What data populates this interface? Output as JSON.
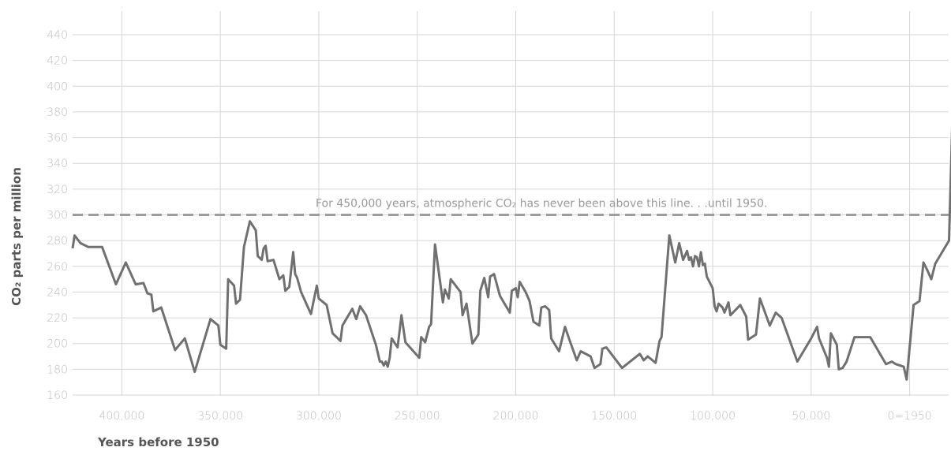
{
  "chart_data": {
    "type": "line",
    "title": "",
    "xlabel": "Years before 1950",
    "ylabel": "CO₂ parts per million",
    "annotation": "For 450,000 years, atmospheric CO₂ has never been above this line. . .until 1950.",
    "reference_line": {
      "y": 300,
      "style": "dashed",
      "color": "#9e9e9e"
    },
    "xlim": [
      425000,
      -2500
    ],
    "ylim": [
      160,
      440
    ],
    "x_ticks": [
      {
        "value": 400000,
        "label": "400,000"
      },
      {
        "value": 350000,
        "label": "350,000"
      },
      {
        "value": 300000,
        "label": "300,000"
      },
      {
        "value": 250000,
        "label": "250,000"
      },
      {
        "value": 200000,
        "label": "200,000"
      },
      {
        "value": 150000,
        "label": "150,000"
      },
      {
        "value": 100000,
        "label": "100,000"
      },
      {
        "value": 50000,
        "label": "50,000"
      },
      {
        "value": 0,
        "label": "0=1950"
      }
    ],
    "y_ticks": [
      {
        "value": 160,
        "label": "160"
      },
      {
        "value": 180,
        "label": "180"
      },
      {
        "value": 200,
        "label": "200"
      },
      {
        "value": 220,
        "label": "220"
      },
      {
        "value": 240,
        "label": "240"
      },
      {
        "value": 260,
        "label": "260"
      },
      {
        "value": 280,
        "label": "280"
      },
      {
        "value": 300,
        "label": "300"
      },
      {
        "value": 320,
        "label": "320"
      },
      {
        "value": 340,
        "label": "340"
      },
      {
        "value": 360,
        "label": "360"
      },
      {
        "value": 380,
        "label": "380"
      },
      {
        "value": 400,
        "label": "400"
      },
      {
        "value": 420,
        "label": "420"
      },
      {
        "value": 440,
        "label": "440"
      }
    ],
    "grid": true,
    "series": [
      {
        "color": "#707070",
        "points": [
          [
            425000,
            274
          ],
          [
            424000,
            284
          ],
          [
            421000,
            278
          ],
          [
            417000,
            275
          ],
          [
            410000,
            275
          ],
          [
            403000,
            246
          ],
          [
            398000,
            263
          ],
          [
            393000,
            246
          ],
          [
            389000,
            247
          ],
          [
            387000,
            239
          ],
          [
            385000,
            238
          ],
          [
            384000,
            225
          ],
          [
            380000,
            228
          ],
          [
            373000,
            195
          ],
          [
            368000,
            204
          ],
          [
            363000,
            178
          ],
          [
            355000,
            219
          ],
          [
            351000,
            214
          ],
          [
            350000,
            199
          ],
          [
            347000,
            196
          ],
          [
            346000,
            250
          ],
          [
            343000,
            245
          ],
          [
            342000,
            231
          ],
          [
            340000,
            234
          ],
          [
            338000,
            275
          ],
          [
            335000,
            295
          ],
          [
            332000,
            288
          ],
          [
            331000,
            268
          ],
          [
            329000,
            265
          ],
          [
            328000,
            274
          ],
          [
            327000,
            276
          ],
          [
            326000,
            264
          ],
          [
            323000,
            265
          ],
          [
            320000,
            250
          ],
          [
            318000,
            253
          ],
          [
            317000,
            241
          ],
          [
            315000,
            244
          ],
          [
            313000,
            271
          ],
          [
            312000,
            254
          ],
          [
            311000,
            251
          ],
          [
            309000,
            240
          ],
          [
            304000,
            223
          ],
          [
            301000,
            245
          ],
          [
            300000,
            235
          ],
          [
            296000,
            230
          ],
          [
            293000,
            208
          ],
          [
            289000,
            202
          ],
          [
            288000,
            214
          ],
          [
            283000,
            227
          ],
          [
            281000,
            219
          ],
          [
            279000,
            229
          ],
          [
            276000,
            222
          ],
          [
            271000,
            199
          ],
          [
            269000,
            186
          ],
          [
            268000,
            186
          ],
          [
            267000,
            183
          ],
          [
            266000,
            186
          ],
          [
            265000,
            182
          ],
          [
            264000,
            189
          ],
          [
            263000,
            204
          ],
          [
            260000,
            197
          ],
          [
            258000,
            222
          ],
          [
            256000,
            201
          ],
          [
            249000,
            189
          ],
          [
            248000,
            205
          ],
          [
            246000,
            201
          ],
          [
            244000,
            213
          ],
          [
            243000,
            215
          ],
          [
            241000,
            277
          ],
          [
            237000,
            232
          ],
          [
            236000,
            242
          ],
          [
            234000,
            235
          ],
          [
            233000,
            250
          ],
          [
            228000,
            240
          ],
          [
            227000,
            222
          ],
          [
            225000,
            231
          ],
          [
            222000,
            200
          ],
          [
            219000,
            207
          ],
          [
            218000,
            241
          ],
          [
            216000,
            251
          ],
          [
            214000,
            236
          ],
          [
            213000,
            252
          ],
          [
            211000,
            254
          ],
          [
            208000,
            237
          ],
          [
            203000,
            224
          ],
          [
            202000,
            241
          ],
          [
            200000,
            243
          ],
          [
            199000,
            236
          ],
          [
            198000,
            248
          ],
          [
            195000,
            240
          ],
          [
            193000,
            233
          ],
          [
            191000,
            217
          ],
          [
            189000,
            215
          ],
          [
            188000,
            214
          ],
          [
            187000,
            228
          ],
          [
            185000,
            229
          ],
          [
            183000,
            226
          ],
          [
            182000,
            204
          ],
          [
            178000,
            194
          ],
          [
            175000,
            213
          ],
          [
            173000,
            204
          ],
          [
            169000,
            187
          ],
          [
            167000,
            194
          ],
          [
            162000,
            190
          ],
          [
            160000,
            181
          ],
          [
            157000,
            184
          ],
          [
            156000,
            196
          ],
          [
            154000,
            197
          ],
          [
            146000,
            181
          ],
          [
            137000,
            192
          ],
          [
            135000,
            187
          ],
          [
            133000,
            190
          ],
          [
            129000,
            185
          ],
          [
            127000,
            202
          ],
          [
            126000,
            205
          ],
          [
            122000,
            284
          ],
          [
            119000,
            263
          ],
          [
            117000,
            278
          ],
          [
            115000,
            265
          ],
          [
            113000,
            272
          ],
          [
            112000,
            265
          ],
          [
            111000,
            267
          ],
          [
            110000,
            260
          ],
          [
            109000,
            268
          ],
          [
            108000,
            267
          ],
          [
            107000,
            260
          ],
          [
            106000,
            271
          ],
          [
            105000,
            261
          ],
          [
            104000,
            262
          ],
          [
            103000,
            252
          ],
          [
            100000,
            243
          ],
          [
            99000,
            229
          ],
          [
            98000,
            225
          ],
          [
            97000,
            231
          ],
          [
            95000,
            228
          ],
          [
            94000,
            224
          ],
          [
            92000,
            232
          ],
          [
            91000,
            222
          ],
          [
            86000,
            230
          ],
          [
            83000,
            221
          ],
          [
            82000,
            203
          ],
          [
            78000,
            207
          ],
          [
            76000,
            235
          ],
          [
            71000,
            214
          ],
          [
            68000,
            224
          ],
          [
            65000,
            220
          ],
          [
            57000,
            186
          ],
          [
            50000,
            204
          ],
          [
            47000,
            213
          ],
          [
            46000,
            204
          ],
          [
            42000,
            189
          ],
          [
            41000,
            182
          ],
          [
            40000,
            208
          ],
          [
            37000,
            199
          ],
          [
            36000,
            180
          ],
          [
            34000,
            181
          ],
          [
            32000,
            186
          ],
          [
            28000,
            205
          ],
          [
            20000,
            205
          ],
          [
            12000,
            184
          ],
          [
            9000,
            186
          ],
          [
            7000,
            184
          ],
          [
            3000,
            182
          ],
          [
            1500,
            172
          ],
          [
            -2000,
            230
          ],
          [
            -5000,
            233
          ],
          [
            -7000,
            263
          ],
          [
            -9000,
            257
          ],
          [
            -11000,
            250
          ],
          [
            -13000,
            262
          ],
          [
            -20000,
            280
          ],
          [
            -22000,
            391
          ]
        ]
      }
    ]
  }
}
